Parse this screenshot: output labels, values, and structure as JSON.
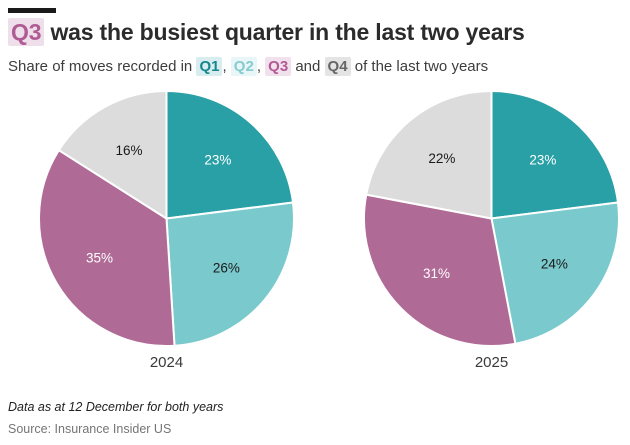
{
  "accent_bar_color": "#1a1a1a",
  "header": {
    "title": {
      "highlight": "Q3",
      "highlight_fg": "#b05c94",
      "highlight_bg": "#efdfeb",
      "rest": " was the busiest quarter in the last two years"
    },
    "subtitle": {
      "prefix": "Share of moves recorded in ",
      "sep1": ", ",
      "sep2": ", ",
      "sep3": " and ",
      "suffix": " of the last two years",
      "badges": [
        {
          "label": "Q1",
          "fg": "#17868d",
          "bg": "#d7edef"
        },
        {
          "label": "Q2",
          "fg": "#85cbcf",
          "bg": "#e9f6f7"
        },
        {
          "label": "Q3",
          "fg": "#b25a94",
          "bg": "#f1e1ed"
        },
        {
          "label": "Q4",
          "fg": "#666666",
          "bg": "#e4e4e4"
        }
      ]
    }
  },
  "chart_data": [
    {
      "type": "pie",
      "title": "2024",
      "labels": [
        "Q1",
        "Q2",
        "Q3",
        "Q4"
      ],
      "values": [
        23,
        26,
        35,
        16
      ],
      "value_labels": [
        "23%",
        "26%",
        "35%",
        "16%"
      ],
      "colors": [
        "#29a0a6",
        "#7ac9cd",
        "#b06a96",
        "#dcdcdc"
      ],
      "label_colors": [
        "#ffffff",
        "#1a1a1a",
        "#ffffff",
        "#1a1a1a"
      ],
      "start_angle_deg": 0,
      "direction": "clockwise",
      "legend": "none"
    },
    {
      "type": "pie",
      "title": "2025",
      "labels": [
        "Q1",
        "Q2",
        "Q3",
        "Q4"
      ],
      "values": [
        23,
        24,
        31,
        22
      ],
      "value_labels": [
        "23%",
        "24%",
        "31%",
        "22%"
      ],
      "colors": [
        "#29a0a6",
        "#7ac9cd",
        "#b06a96",
        "#dcdcdc"
      ],
      "label_colors": [
        "#ffffff",
        "#1a1a1a",
        "#ffffff",
        "#1a1a1a"
      ],
      "start_angle_deg": 0,
      "direction": "clockwise",
      "legend": "none"
    }
  ],
  "footer": {
    "note": "Data as at 12 December for both years",
    "source": "Source: Insurance Insider US"
  }
}
